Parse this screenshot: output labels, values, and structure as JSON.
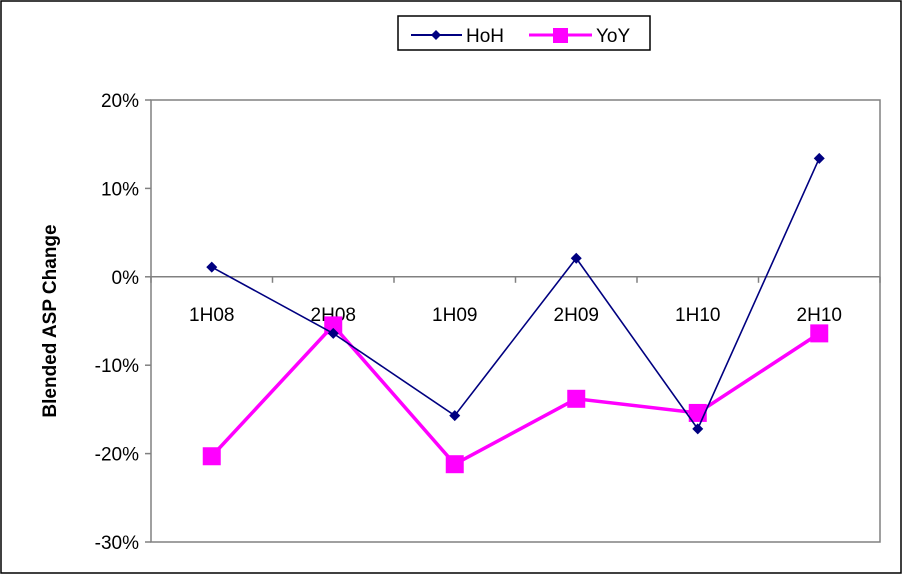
{
  "chart_data": {
    "type": "line",
    "title": "",
    "xlabel": "",
    "ylabel": "Blended ASP Change",
    "categories": [
      "1H08",
      "2H08",
      "1H09",
      "2H09",
      "1H10",
      "2H10"
    ],
    "ylim": [
      -0.3,
      0.2
    ],
    "yticks": [
      "20%",
      "10%",
      "0%",
      "-10%",
      "-20%",
      "-30%"
    ],
    "ytick_values": [
      0.2,
      0.1,
      0.0,
      -0.1,
      -0.2,
      -0.3
    ],
    "grid": false,
    "legend_position": "top",
    "series": [
      {
        "name": "HoH",
        "values": [
          0.011,
          -0.064,
          -0.157,
          0.021,
          -0.172,
          0.134
        ],
        "color": "#000080",
        "marker": "diamond"
      },
      {
        "name": "YoY",
        "values": [
          -0.203,
          -0.055,
          -0.212,
          -0.138,
          -0.154,
          -0.064
        ],
        "color": "#ff00ff",
        "marker": "square"
      }
    ]
  }
}
